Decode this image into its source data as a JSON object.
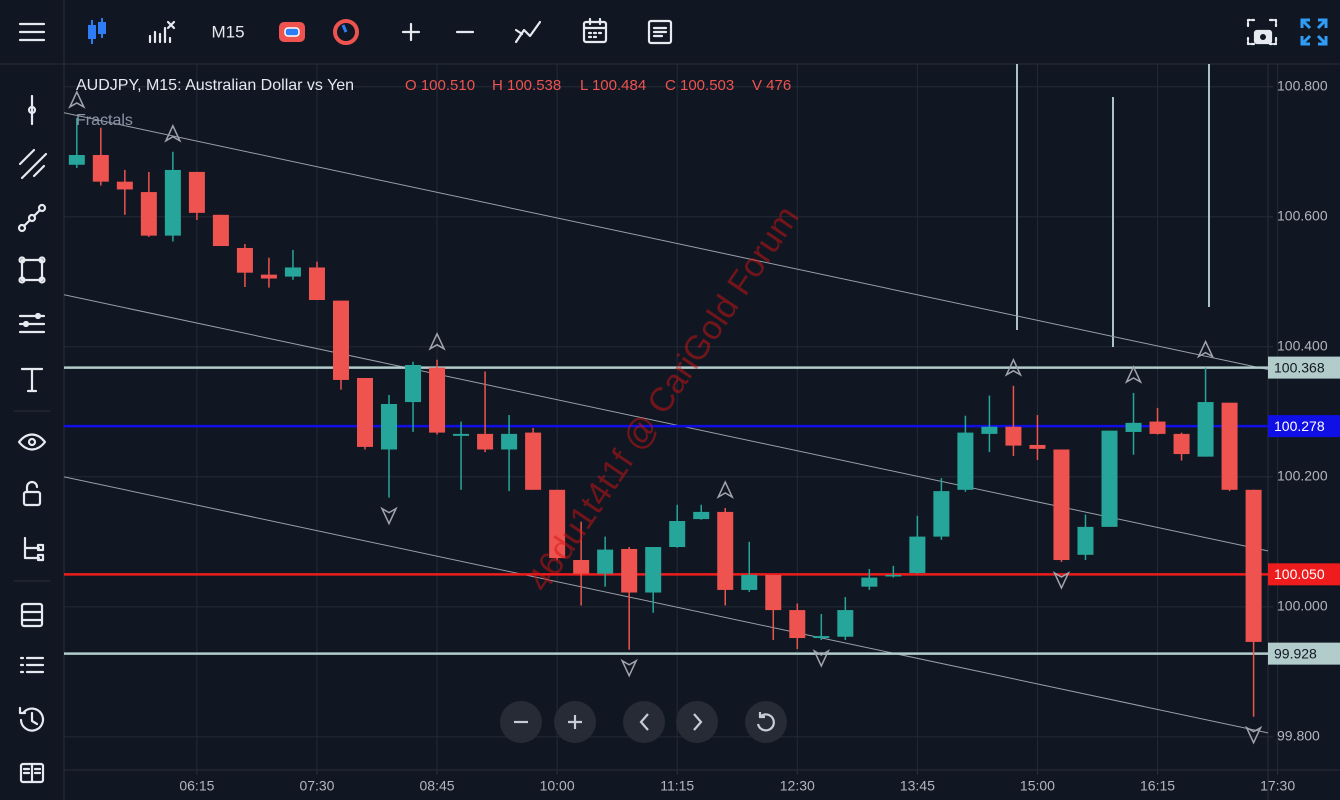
{
  "toolbar": {
    "timeframe": "M15"
  },
  "chart_data": {
    "type": "candlestick",
    "title": "AUDJPY, M15: Australian Dollar vs Yen",
    "quote": [
      "O 100.510",
      "H 100.538",
      "L 100.484",
      "C 100.503",
      "V 476"
    ],
    "indicator": "Fractals",
    "watermark": "46du1t4t1f @ CariGold Forum",
    "up_color": "#26a69a",
    "down_color": "#ef5350",
    "x": [
      300,
      315,
      330,
      345,
      360,
      375,
      390,
      405,
      420,
      435,
      450,
      465,
      480,
      495,
      510,
      525,
      540,
      555,
      570,
      585,
      600,
      615,
      630,
      645,
      660,
      675,
      690,
      705,
      720,
      735,
      750,
      765,
      780,
      795,
      810,
      825,
      840,
      855,
      870,
      885,
      900,
      915,
      930,
      945,
      960,
      975,
      990,
      1005,
      1020,
      1035
    ],
    "open": [
      100.68,
      100.695,
      100.654,
      100.638,
      100.571,
      100.669,
      100.603,
      100.552,
      100.511,
      100.508,
      100.522,
      100.471,
      100.352,
      100.242,
      100.315,
      100.368,
      100.263,
      100.266,
      100.242,
      100.268,
      100.18,
      100.072,
      100.051,
      100.089,
      100.022,
      100.092,
      100.135,
      100.146,
      100.026,
      100.049,
      99.995,
      99.952,
      99.954,
      100.031,
      100.048,
      100.052,
      100.108,
      100.18,
      100.266,
      100.277,
      100.249,
      100.242,
      100.08,
      100.123,
      100.269,
      100.285,
      100.266,
      100.231,
      100.314,
      100.18
    ],
    "high": [
      100.752,
      100.737,
      100.672,
      100.669,
      100.7,
      100.669,
      100.603,
      100.558,
      100.537,
      100.549,
      100.531,
      100.471,
      100.352,
      100.326,
      100.377,
      100.38,
      100.285,
      100.362,
      100.295,
      100.275,
      100.18,
      100.131,
      100.108,
      100.092,
      100.092,
      100.157,
      100.157,
      100.152,
      100.1,
      100.049,
      100.005,
      99.989,
      100.015,
      100.058,
      100.063,
      100.14,
      100.198,
      100.294,
      100.325,
      100.34,
      100.295,
      100.242,
      100.142,
      100.271,
      100.329,
      100.306,
      100.268,
      100.368,
      100.314,
      100.18
    ],
    "low": [
      100.675,
      100.648,
      100.603,
      100.569,
      100.562,
      100.595,
      100.555,
      100.492,
      100.491,
      100.503,
      100.472,
      100.334,
      100.242,
      100.168,
      100.269,
      100.265,
      100.18,
      100.238,
      100.178,
      100.18,
      100.072,
      100.002,
      100.031,
      99.934,
      99.991,
      100.091,
      100.134,
      100.002,
      100.023,
      99.949,
      99.935,
      99.949,
      99.949,
      100.026,
      100.045,
      100.051,
      100.103,
      100.177,
      100.238,
      100.232,
      100.226,
      100.069,
      100.072,
      100.123,
      100.234,
      100.265,
      100.225,
      100.231,
      100.178,
      99.831
    ],
    "close": [
      100.695,
      100.654,
      100.642,
      100.571,
      100.672,
      100.606,
      100.555,
      100.514,
      100.505,
      100.522,
      100.472,
      100.349,
      100.246,
      100.312,
      100.372,
      100.268,
      100.266,
      100.242,
      100.266,
      100.18,
      100.075,
      100.051,
      100.088,
      100.022,
      100.092,
      100.132,
      100.146,
      100.026,
      100.049,
      99.995,
      99.952,
      99.955,
      99.995,
      100.045,
      100.049,
      100.108,
      100.178,
      100.268,
      100.277,
      100.248,
      100.243,
      100.072,
      100.123,
      100.271,
      100.283,
      100.266,
      100.235,
      100.315,
      100.18,
      99.946
    ],
    "fractals": {
      "up": [
        0,
        4,
        15,
        27,
        39,
        44,
        47
      ],
      "down": [
        13,
        23,
        31,
        41,
        49
      ]
    },
    "price_lines": [
      {
        "value": 100.368,
        "label": "100.368",
        "color": "#b2cccc"
      },
      {
        "value": 100.278,
        "label": "100.278",
        "color": "#1010e6"
      },
      {
        "value": 100.05,
        "label": "100.050",
        "color": "#ee1c1c"
      },
      {
        "value": 99.928,
        "label": "99.928",
        "color": "#b2cccc"
      }
    ],
    "trend_lines": [
      {
        "x": [
          292,
          1044
        ],
        "y": [
          100.76,
          100.365
        ]
      },
      {
        "x": [
          292,
          1044
        ],
        "y": [
          100.48,
          100.086
        ]
      },
      {
        "x": [
          292,
          1044
        ],
        "y": [
          100.2,
          99.806
        ]
      }
    ],
    "xlim": [
      292,
      1044
    ],
    "xticks": [
      {
        "value": 375,
        "label": "06:15"
      },
      {
        "value": 450,
        "label": "07:30"
      },
      {
        "value": 525,
        "label": "08:45"
      },
      {
        "value": 600,
        "label": "10:00"
      },
      {
        "value": 675,
        "label": "11:15"
      },
      {
        "value": 750,
        "label": "12:30"
      },
      {
        "value": 825,
        "label": "13:45"
      },
      {
        "value": 900,
        "label": "15:00"
      },
      {
        "value": 975,
        "label": "16:15"
      },
      {
        "value": 1050,
        "label": "17:30"
      }
    ],
    "ylim": [
      99.749,
      100.835
    ],
    "yticks": [
      {
        "value": 99.8,
        "label": "99.800"
      },
      {
        "value": 100,
        "label": "100.000"
      },
      {
        "value": 100.2,
        "label": "100.200"
      },
      {
        "value": 100.4,
        "label": "100.400"
      },
      {
        "value": 100.6,
        "label": "100.600"
      },
      {
        "value": 100.8,
        "label": "100.800"
      }
    ],
    "grid": true
  }
}
